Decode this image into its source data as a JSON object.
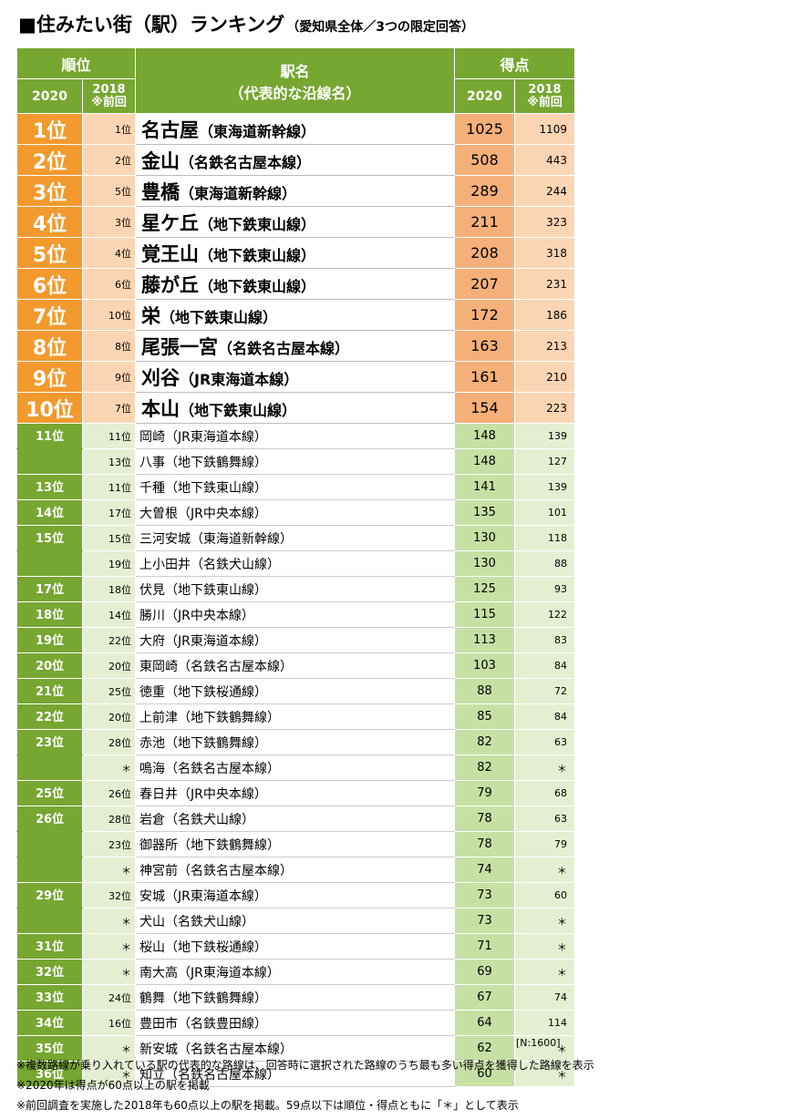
{
  "title": {
    "main": "■住みたい街（駅）ランキング",
    "sub": "（愛知県全体／3つの限定回答）"
  },
  "header": {
    "rank_label": "順位",
    "station_label": "駅名",
    "station_sub": "（代表的な沿線名）",
    "score_label": "得点",
    "y2020": "2020",
    "y2018": "2018",
    "prev": "※前回"
  },
  "top_rows": [
    {
      "rank": "1位",
      "prev": "1位",
      "name": "名古屋",
      "line": "（東海道新幹線）",
      "score": "1025",
      "prev_score": "1109"
    },
    {
      "rank": "2位",
      "prev": "2位",
      "name": "金山",
      "line": "（名鉄名古屋本線）",
      "score": "508",
      "prev_score": "443"
    },
    {
      "rank": "3位",
      "prev": "5位",
      "name": "豊橋",
      "line": "（東海道新幹線）",
      "score": "289",
      "prev_score": "244"
    },
    {
      "rank": "4位",
      "prev": "3位",
      "name": "星ケ丘",
      "line": "（地下鉄東山線）",
      "score": "211",
      "prev_score": "323"
    },
    {
      "rank": "5位",
      "prev": "4位",
      "name": "覚王山",
      "line": "（地下鉄東山線）",
      "score": "208",
      "prev_score": "318"
    },
    {
      "rank": "6位",
      "prev": "6位",
      "name": "藤が丘",
      "line": "（地下鉄東山線）",
      "score": "207",
      "prev_score": "231"
    },
    {
      "rank": "7位",
      "prev": "10位",
      "name": "栄",
      "line": "（地下鉄東山線）",
      "score": "172",
      "prev_score": "186"
    },
    {
      "rank": "8位",
      "prev": "8位",
      "name": "尾張一宮",
      "line": "（名鉄名古屋本線）",
      "score": "163",
      "prev_score": "213"
    },
    {
      "rank": "9位",
      "prev": "9位",
      "name": "刈谷",
      "line": "（JR東海道本線）",
      "score": "161",
      "prev_score": "210"
    },
    {
      "rank": "10位",
      "prev": "7位",
      "name": "本山",
      "line": "（地下鉄東山線）",
      "score": "154",
      "prev_score": "223"
    }
  ],
  "rows": [
    {
      "rank": "11位",
      "prev": "11位",
      "name": "岡崎（JR東海道本線）",
      "score": "148",
      "prev_score": "139"
    },
    {
      "rank": "",
      "prev": "13位",
      "name": "八事（地下鉄鶴舞線）",
      "score": "148",
      "prev_score": "127"
    },
    {
      "rank": "13位",
      "prev": "11位",
      "name": "千種（地下鉄東山線）",
      "score": "141",
      "prev_score": "139"
    },
    {
      "rank": "14位",
      "prev": "17位",
      "name": "大曽根（JR中央本線）",
      "score": "135",
      "prev_score": "101"
    },
    {
      "rank": "15位",
      "prev": "15位",
      "name": "三河安城（東海道新幹線）",
      "score": "130",
      "prev_score": "118"
    },
    {
      "rank": "",
      "prev": "19位",
      "name": "上小田井（名鉄犬山線）",
      "score": "130",
      "prev_score": "88"
    },
    {
      "rank": "17位",
      "prev": "18位",
      "name": "伏見（地下鉄東山線）",
      "score": "125",
      "prev_score": "93"
    },
    {
      "rank": "18位",
      "prev": "14位",
      "name": "勝川（JR中央本線）",
      "score": "115",
      "prev_score": "122"
    },
    {
      "rank": "19位",
      "prev": "22位",
      "name": "大府（JR東海道本線）",
      "score": "113",
      "prev_score": "83"
    },
    {
      "rank": "20位",
      "prev": "20位",
      "name": "東岡崎（名鉄名古屋本線）",
      "score": "103",
      "prev_score": "84"
    },
    {
      "rank": "21位",
      "prev": "25位",
      "name": "徳重（地下鉄桜通線）",
      "score": "88",
      "prev_score": "72"
    },
    {
      "rank": "22位",
      "prev": "20位",
      "name": "上前津（地下鉄鶴舞線）",
      "score": "85",
      "prev_score": "84"
    },
    {
      "rank": "23位",
      "prev": "28位",
      "name": "赤池（地下鉄鶴舞線）",
      "score": "82",
      "prev_score": "63"
    },
    {
      "rank": "",
      "prev": "＊",
      "name": "鳴海（名鉄名古屋本線）",
      "score": "82",
      "prev_score": "＊"
    },
    {
      "rank": "25位",
      "prev": "26位",
      "name": "春日井（JR中央本線）",
      "score": "79",
      "prev_score": "68"
    },
    {
      "rank": "26位",
      "prev": "28位",
      "name": "岩倉（名鉄犬山線）",
      "score": "78",
      "prev_score": "63"
    },
    {
      "rank": "",
      "prev": "23位",
      "name": "御器所（地下鉄鶴舞線）",
      "score": "78",
      "prev_score": "79"
    },
    {
      "rank": "",
      "prev": "＊",
      "name": "神宮前（名鉄名古屋本線）",
      "score": "74",
      "prev_score": "＊"
    },
    {
      "rank": "29位",
      "prev": "32位",
      "name": "安城（JR東海道本線）",
      "score": "73",
      "prev_score": "60"
    },
    {
      "rank": "",
      "prev": "＊",
      "name": "犬山（名鉄犬山線）",
      "score": "73",
      "prev_score": "＊"
    },
    {
      "rank": "31位",
      "prev": "＊",
      "name": "桜山（地下鉄桜通線）",
      "score": "71",
      "prev_score": "＊"
    },
    {
      "rank": "32位",
      "prev": "＊",
      "name": "南大高（JR東海道本線）",
      "score": "69",
      "prev_score": "＊"
    },
    {
      "rank": "33位",
      "prev": "24位",
      "name": "鶴舞（地下鉄鶴舞線）",
      "score": "67",
      "prev_score": "74"
    },
    {
      "rank": "34位",
      "prev": "16位",
      "name": "豊田市（名鉄豊田線）",
      "score": "64",
      "prev_score": "114"
    },
    {
      "rank": "35位",
      "prev": "＊",
      "name": "新安城（名鉄名古屋本線）",
      "score": "62",
      "prev_score": "＊"
    },
    {
      "rank": "36位",
      "prev": "＊",
      "name": "知立（名鉄名古屋本線）",
      "score": "60",
      "prev_score": "＊"
    }
  ],
  "n_label": "[N:1600]",
  "notes": [
    "※複数路線が乗り入れている駅の代表的な路線は、回答時に選択された路線のうち最も多い得点を獲得した路線を表示",
    "※2020年は得点が60点以上の駅を掲載",
    "※前回調査を実施した2018年も60点以上の駅を掲載。59点以下は順位・得点ともに「＊」として表示"
  ]
}
